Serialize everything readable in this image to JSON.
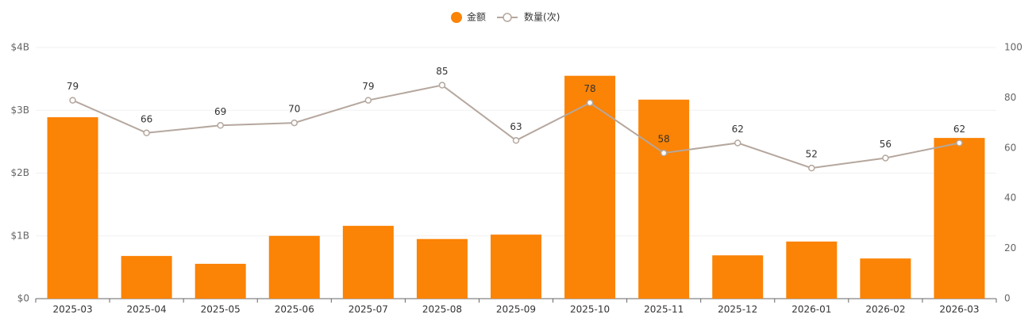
{
  "chart_data": {
    "type": "bar-line",
    "categories": [
      "2025-03",
      "2025-04",
      "2025-05",
      "2025-06",
      "2025-07",
      "2025-08",
      "2025-09",
      "2025-10",
      "2025-11",
      "2025-12",
      "2026-01",
      "2026-02",
      "2026-03"
    ],
    "series": [
      {
        "name": "金额",
        "type": "bar",
        "color": "#fb8305",
        "values": [
          2890000000,
          680000000,
          555000000,
          1000000000,
          1160000000,
          950000000,
          1020000000,
          3550000000,
          3170000000,
          690000000,
          910000000,
          640000000,
          2560000000
        ]
      },
      {
        "name": "数量(次)",
        "type": "line",
        "axis": "y2",
        "color": "#b5a79e",
        "values": [
          79,
          66,
          69,
          70,
          79,
          85,
          63,
          78,
          58,
          62,
          52,
          56,
          62
        ]
      }
    ],
    "ylim": [
      0,
      4000000000
    ],
    "yticks": [
      {
        "value": 0,
        "label": "$0"
      },
      {
        "value": 1000000000,
        "label": "$1B"
      },
      {
        "value": 2000000000,
        "label": "$2B"
      },
      {
        "value": 3000000000,
        "label": "$3B"
      },
      {
        "value": 4000000000,
        "label": "$4B"
      }
    ],
    "y2lim": [
      0,
      100
    ],
    "y2ticks": [
      0,
      20,
      40,
      60,
      80,
      100
    ],
    "grid": true
  }
}
